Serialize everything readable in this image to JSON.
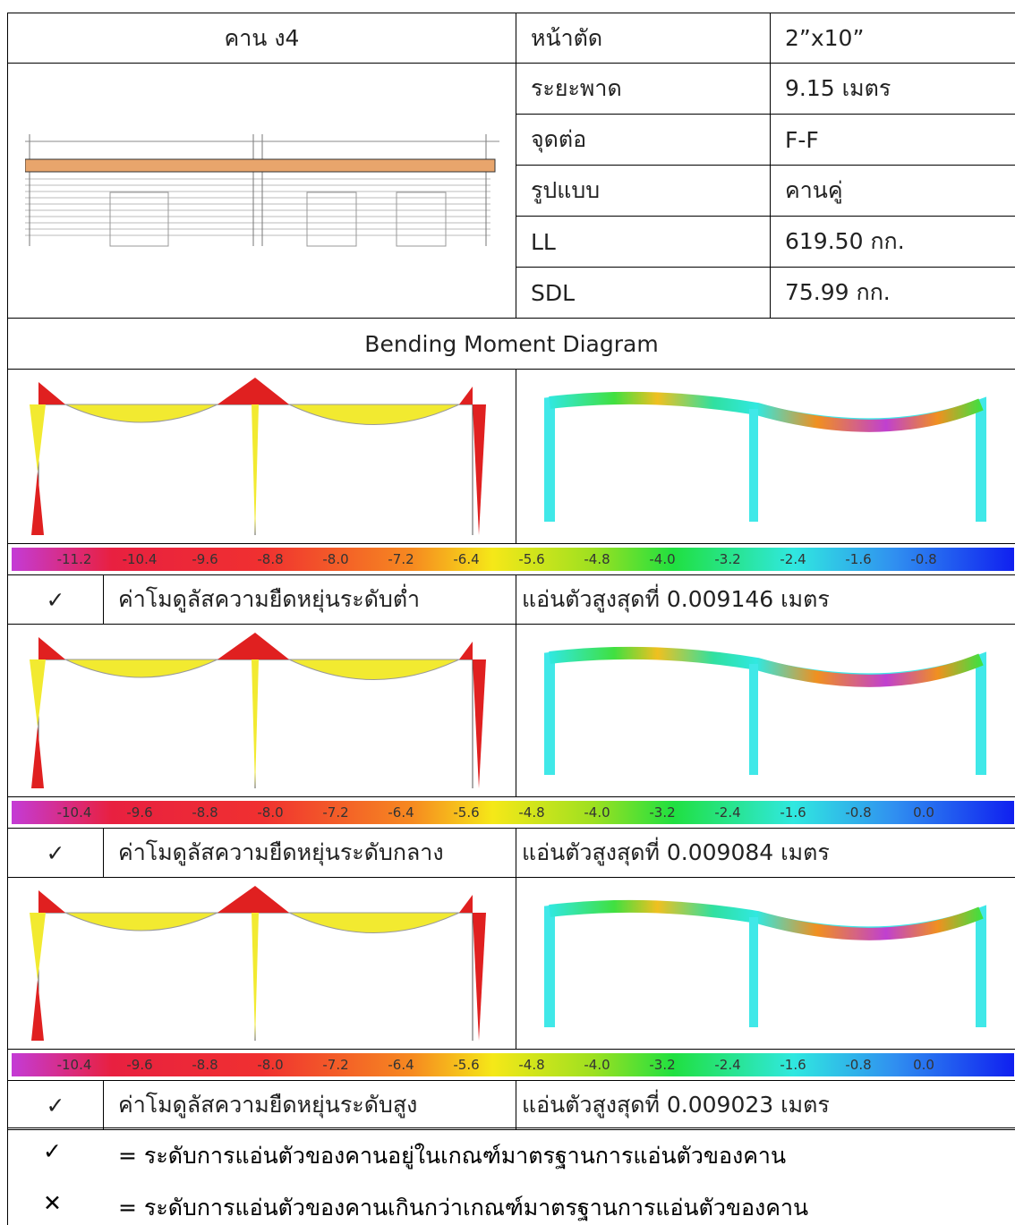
{
  "header": {
    "beam": "คาน ง4",
    "section_label": "หน้าตัด",
    "section_value": "2”x10”"
  },
  "properties": [
    {
      "label": "ระยะพาด",
      "value": "9.15 เมตร"
    },
    {
      "label": "จุดต่อ",
      "value": "F-F"
    },
    {
      "label": "รูปแบบ",
      "value": "คานคู่"
    },
    {
      "label": "LL",
      "value": "619.50 กก."
    },
    {
      "label": "SDL",
      "value": "75.99 กก."
    }
  ],
  "section_title": "Bending Moment Diagram",
  "cases": [
    {
      "colorbar": [
        "-11.2",
        "-10.4",
        "-9.6",
        "-8.8",
        "-8.0",
        "-7.2",
        "-6.4",
        "-5.6",
        "-4.8",
        "-4.0",
        "-3.2",
        "-2.4",
        "-1.6",
        "-0.8"
      ],
      "check": "✓",
      "label": "ค่าโมดูลัสความยืดหยุ่นระดับต่ำ",
      "result": "แอ่นตัวสูงสุดที่ 0.009146 เมตร"
    },
    {
      "colorbar": [
        "-10.4",
        "-9.6",
        "-8.8",
        "-8.0",
        "-7.2",
        "-6.4",
        "-5.6",
        "-4.8",
        "-4.0",
        "-3.2",
        "-2.4",
        "-1.6",
        "-0.8",
        "0.0"
      ],
      "check": "✓",
      "label": "ค่าโมดูลัสความยืดหยุ่นระดับกลาง",
      "result": "แอ่นตัวสูงสุดที่ 0.009084 เมตร"
    },
    {
      "colorbar": [
        "-10.4",
        "-9.6",
        "-8.8",
        "-8.0",
        "-7.2",
        "-6.4",
        "-5.6",
        "-4.8",
        "-4.0",
        "-3.2",
        "-2.4",
        "-1.6",
        "-0.8",
        "0.0"
      ],
      "check": "✓",
      "label": "ค่าโมดูลัสความยืดหยุ่นระดับสูง",
      "result": "แอ่นตัวสูงสุดที่ 0.009023 เมตร"
    }
  ],
  "legend": [
    {
      "symbol": "✓",
      "text": "= ระดับการแอ่นตัวของคานอยู่ในเกณฑ์มาตรฐานการแอ่นตัวของคาน"
    },
    {
      "symbol": "✕",
      "text": "= ระดับการแอ่นตัวของคานเกินกว่าเกณฑ์มาตรฐานการแอ่นตัวของคาน"
    }
  ]
}
